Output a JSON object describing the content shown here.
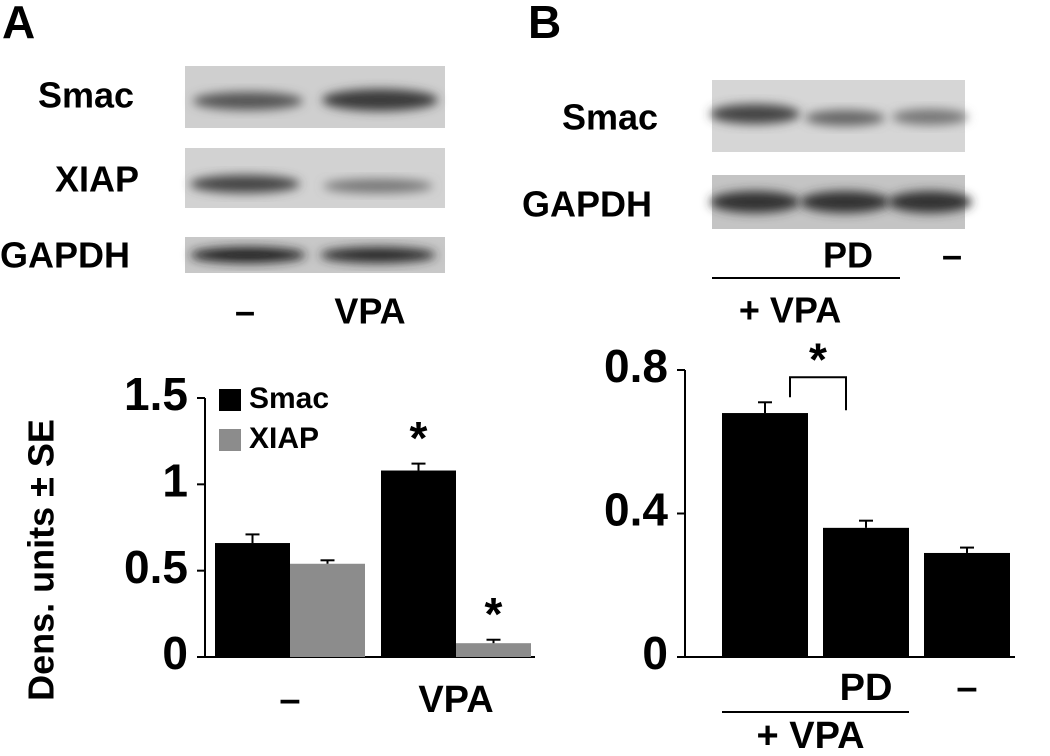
{
  "panel_labels": [
    "A",
    "B"
  ],
  "blots": [
    {
      "rows": [
        "Smac",
        "XIAP",
        "GAPDH"
      ],
      "lanes": [
        "–",
        "VPA"
      ]
    },
    {
      "rows": [
        "Smac",
        "GAPDH"
      ],
      "lanes": [
        "PD",
        "–"
      ],
      "group_label": "+ VPA"
    }
  ],
  "chart_data": [
    {
      "type": "bar",
      "y_label": "Dens. units ± SE",
      "categories": [
        "–",
        "VPA"
      ],
      "series": [
        {
          "name": "Smac",
          "color": "#000000",
          "values": [
            0.66,
            1.08
          ],
          "errors": [
            0.05,
            0.04
          ],
          "significance": [
            null,
            "*"
          ]
        },
        {
          "name": "XIAP",
          "color": "#8c8c8c",
          "values": [
            0.54,
            0.08
          ],
          "errors": [
            0.02,
            0.02
          ],
          "significance": [
            null,
            "*"
          ]
        }
      ],
      "ylim": [
        0,
        1.5
      ],
      "yticks": [
        0,
        0.5,
        1,
        1.5
      ],
      "legend": "upper-left"
    },
    {
      "type": "bar",
      "categories": [
        null,
        "PD",
        "–"
      ],
      "group_label": "+ VPA",
      "series": [
        {
          "color": "#000000",
          "values": [
            0.68,
            0.36,
            0.29
          ],
          "errors": [
            0.03,
            0.02,
            0.015
          ]
        }
      ],
      "bracket": {
        "between": [
          0,
          1
        ],
        "label": "*"
      },
      "ylim": [
        0,
        0.8
      ],
      "yticks": [
        0,
        0.4,
        0.8
      ]
    }
  ]
}
